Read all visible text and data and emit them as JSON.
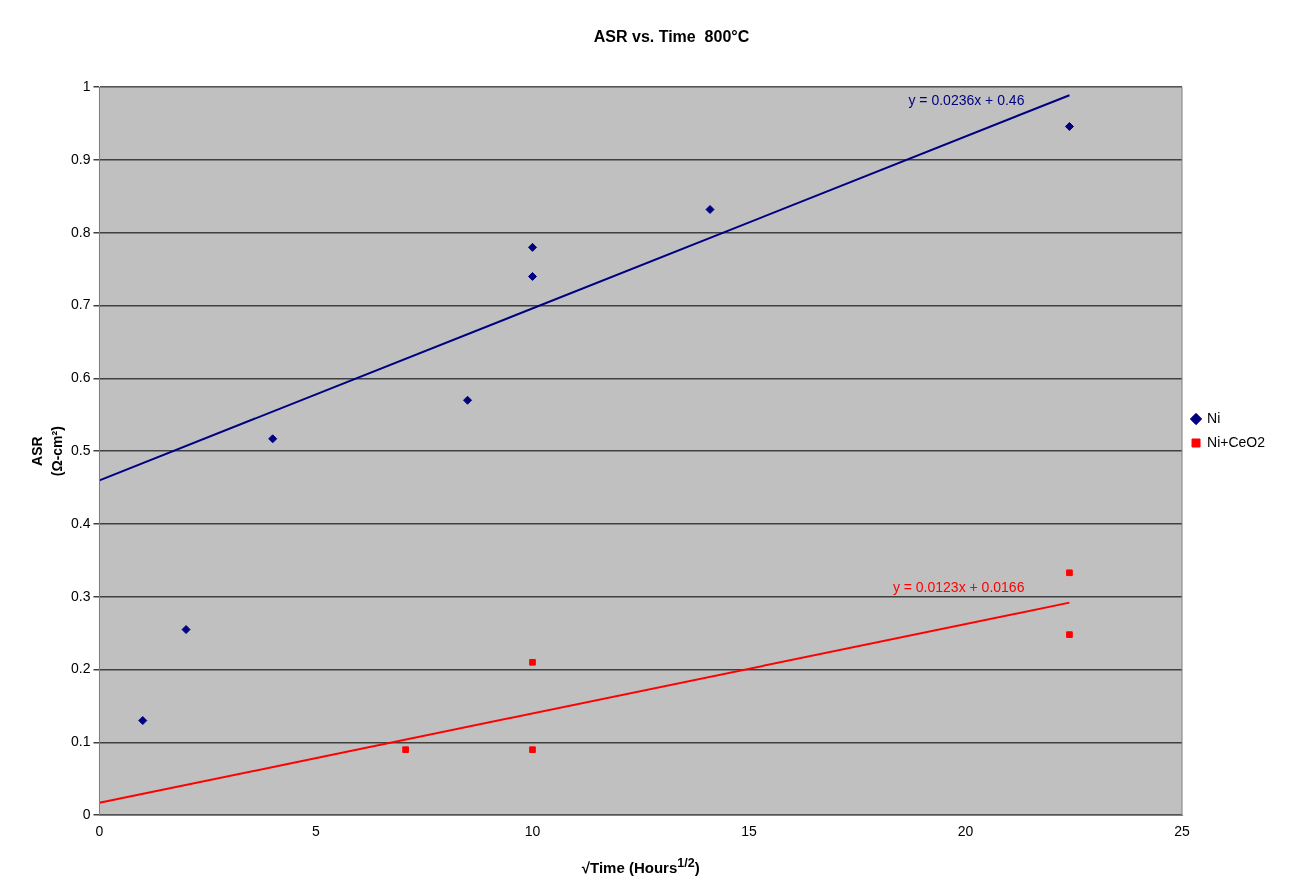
{
  "chart_data": {
    "type": "scatter",
    "title": "ASR vs. Time  800°C",
    "xlabel": "√Time (Hours$^{1/2}$)",
    "ylabel": "ASR\n(Ω-cm²)",
    "xlim": [
      0,
      25
    ],
    "xticks": [
      0,
      5,
      10,
      15,
      20,
      25
    ],
    "ylim": [
      0,
      1
    ],
    "yticks": [
      0,
      0.1,
      0.2,
      0.3,
      0.4,
      0.5,
      0.6,
      0.7,
      0.8,
      0.9,
      1
    ],
    "grid": "y",
    "legend": "right",
    "series": [
      {
        "name": "Ni",
        "type": "scatter",
        "color": "#000080",
        "marker": "diamond",
        "x": [
          1,
          2,
          4,
          8.5,
          10,
          10,
          14.1,
          22.4
        ],
        "values": [
          0.13,
          0.255,
          0.517,
          0.57,
          0.78,
          0.74,
          0.832,
          0.946
        ]
      },
      {
        "name": "Ni+CeO2",
        "type": "scatter",
        "color": "#ff0000",
        "marker": "square",
        "x": [
          7.07,
          10,
          10,
          22.4,
          22.4
        ],
        "values": [
          0.09,
          0.21,
          0.09,
          0.333,
          0.248
        ]
      },
      {
        "type": "line",
        "color": "#000080",
        "x": [
          0,
          22.4
        ],
        "values": [
          0.46,
          0.989
        ]
      },
      {
        "type": "line",
        "color": "#ff0000",
        "x": [
          0,
          22.4
        ],
        "values": [
          0.017,
          0.292
        ]
      }
    ],
    "annotations": [
      "y = 0.0236x + 0.46",
      "y = 0.0123x + 0.0166"
    ]
  }
}
